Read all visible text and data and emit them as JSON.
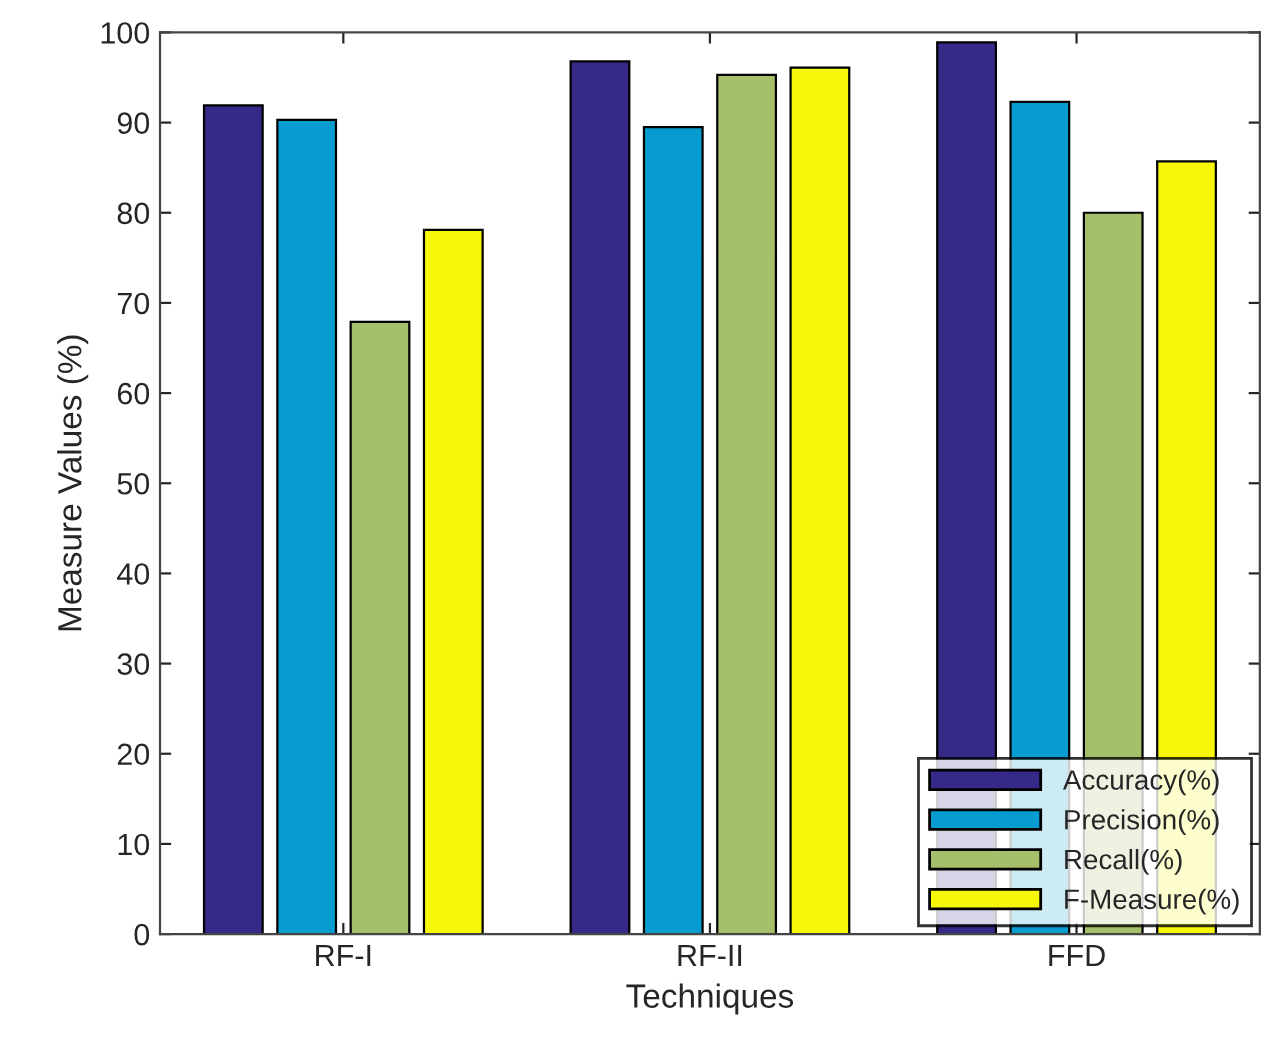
{
  "chart_data": {
    "type": "bar",
    "xlabel": "Techniques",
    "ylabel": "Measure Values (%)",
    "categories": [
      "RF-I",
      "RF-II",
      "FFD"
    ],
    "series": [
      {
        "name": "Accuracy(%)",
        "color": "#352a87",
        "values": [
          91.9,
          96.8,
          98.9
        ]
      },
      {
        "name": "Precision(%)",
        "color": "#069ccf",
        "values": [
          90.3,
          89.5,
          92.3
        ]
      },
      {
        "name": "Recall(%)",
        "color": "#a6bf6a",
        "values": [
          67.9,
          95.3,
          80.0
        ]
      },
      {
        "name": "F-Measure(%)",
        "color": "#f7f70a",
        "values": [
          78.1,
          96.1,
          85.7
        ]
      }
    ],
    "ylim": [
      0,
      100
    ],
    "yticks": [
      0,
      10,
      20,
      30,
      40,
      50,
      60,
      70,
      80,
      90,
      100
    ],
    "grid": false,
    "legend": "bottom right"
  }
}
